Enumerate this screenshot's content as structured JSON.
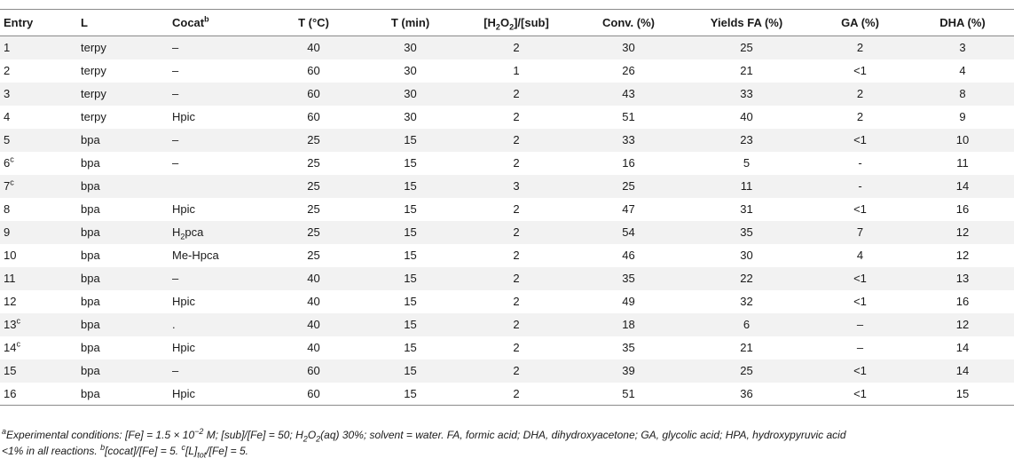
{
  "headers": {
    "entry": "Entry",
    "l": "L",
    "cocat": "Cocat",
    "cocat_sup": "b",
    "t_c": "T (°C)",
    "t_min": "T (min)",
    "ratio_pre": "[H",
    "ratio_sub1": "2",
    "ratio_mid": "O",
    "ratio_sub2": "2",
    "ratio_post": "]/[sub]",
    "conv": "Conv. (%)",
    "yields_fa": "Yields FA (%)",
    "ga": "GA (%)",
    "dha": "DHA (%)"
  },
  "rows": [
    {
      "entry": "1",
      "sup": "",
      "l": "terpy",
      "cocat": "–",
      "t_c": "40",
      "t_min": "30",
      "ratio": "2",
      "conv": "30",
      "fa": "25",
      "ga": "2",
      "dha": "3"
    },
    {
      "entry": "2",
      "sup": "",
      "l": "terpy",
      "cocat": "–",
      "t_c": "60",
      "t_min": "30",
      "ratio": "1",
      "conv": "26",
      "fa": "21",
      "ga": "<1",
      "dha": "4"
    },
    {
      "entry": "3",
      "sup": "",
      "l": "terpy",
      "cocat": "–",
      "t_c": "60",
      "t_min": "30",
      "ratio": "2",
      "conv": "43",
      "fa": "33",
      "ga": "2",
      "dha": "8"
    },
    {
      "entry": "4",
      "sup": "",
      "l": "terpy",
      "cocat": "Hpic",
      "t_c": "60",
      "t_min": "30",
      "ratio": "2",
      "conv": "51",
      "fa": "40",
      "ga": "2",
      "dha": "9"
    },
    {
      "entry": "5",
      "sup": "",
      "l": "bpa",
      "cocat": "–",
      "t_c": "25",
      "t_min": "15",
      "ratio": "2",
      "conv": "33",
      "fa": "23",
      "ga": "<1",
      "dha": "10"
    },
    {
      "entry": "6",
      "sup": "c",
      "l": "bpa",
      "cocat": "–",
      "t_c": "25",
      "t_min": "15",
      "ratio": "2",
      "conv": "16",
      "fa": "5",
      "ga": "-",
      "dha": "11"
    },
    {
      "entry": "7",
      "sup": "c",
      "l": "bpa",
      "cocat": "",
      "t_c": "25",
      "t_min": "15",
      "ratio": "3",
      "conv": "25",
      "fa": "11",
      "ga": "-",
      "dha": "14"
    },
    {
      "entry": "8",
      "sup": "",
      "l": "bpa",
      "cocat": "Hpic",
      "t_c": "25",
      "t_min": "15",
      "ratio": "2",
      "conv": "47",
      "fa": "31",
      "ga": "<1",
      "dha": "16"
    },
    {
      "entry": "9",
      "sup": "",
      "l": "bpa",
      "cocat": "H",
      "cocat_sub": "2",
      "cocat_post": "pca",
      "t_c": "25",
      "t_min": "15",
      "ratio": "2",
      "conv": "54",
      "fa": "35",
      "ga": "7",
      "dha": "12"
    },
    {
      "entry": "10",
      "sup": "",
      "l": "bpa",
      "cocat": "Me-Hpca",
      "t_c": "25",
      "t_min": "15",
      "ratio": "2",
      "conv": "46",
      "fa": "30",
      "ga": "4",
      "dha": "12"
    },
    {
      "entry": "11",
      "sup": "",
      "l": "bpa",
      "cocat": "–",
      "t_c": "40",
      "t_min": "15",
      "ratio": "2",
      "conv": "35",
      "fa": "22",
      "ga": "<1",
      "dha": "13"
    },
    {
      "entry": "12",
      "sup": "",
      "l": "bpa",
      "cocat": "Hpic",
      "t_c": "40",
      "t_min": "15",
      "ratio": "2",
      "conv": "49",
      "fa": "32",
      "ga": "<1",
      "dha": "16"
    },
    {
      "entry": "13",
      "sup": "c",
      "l": "bpa",
      "cocat": ".",
      "t_c": "40",
      "t_min": "15",
      "ratio": "2",
      "conv": "18",
      "fa": "6",
      "ga": "–",
      "dha": "12"
    },
    {
      "entry": "14",
      "sup": "c",
      "l": "bpa",
      "cocat": "Hpic",
      "t_c": "40",
      "t_min": "15",
      "ratio": "2",
      "conv": "35",
      "fa": "21",
      "ga": "–",
      "dha": "14"
    },
    {
      "entry": "15",
      "sup": "",
      "l": "bpa",
      "cocat": "–",
      "t_c": "60",
      "t_min": "15",
      "ratio": "2",
      "conv": "39",
      "fa": "25",
      "ga": "<1",
      "dha": "14"
    },
    {
      "entry": "16",
      "sup": "",
      "l": "bpa",
      "cocat": "Hpic",
      "t_c": "60",
      "t_min": "15",
      "ratio": "2",
      "conv": "51",
      "fa": "36",
      "ga": "<1",
      "dha": "15"
    }
  ],
  "footnote": {
    "a_mark": "a",
    "a_text1": "Experimental conditions: [Fe] = 1.5 × 10",
    "a_exp": "−2",
    "a_text2": " M; [sub]/[Fe] = 50; H",
    "a_sub1": "2",
    "a_text3": "O",
    "a_sub2": "2",
    "a_text4": "(aq) 30%; solvent = water. FA, formic acid; DHA, dihydroxyacetone; GA, glycolic acid; HPA, hydroxypyruvic acid",
    "line2_start": "<1% in all reactions. ",
    "b_mark": "b",
    "b_text": "[cocat]/[Fe] = 5. ",
    "c_mark": "c",
    "c_text1": "[L]",
    "c_sub": "tot",
    "c_text2": "/[Fe] = 5."
  }
}
